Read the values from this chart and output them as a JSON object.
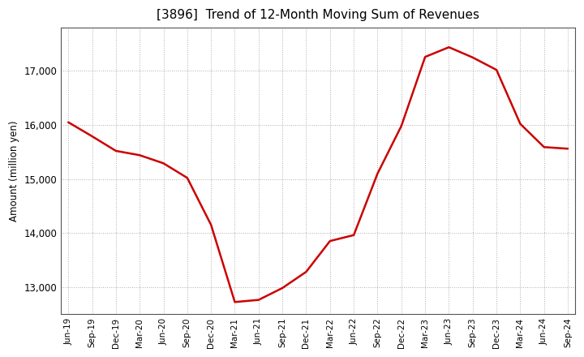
{
  "title": "[3896]  Trend of 12-Month Moving Sum of Revenues",
  "ylabel": "Amount (million yen)",
  "line_color": "#cc0000",
  "line_width": 1.8,
  "background_color": "#ffffff",
  "grid_color": "#999999",
  "ylim": [
    12500,
    17800
  ],
  "yticks": [
    13000,
    14000,
    15000,
    16000,
    17000
  ],
  "x_labels": [
    "Jun-19",
    "Sep-19",
    "Dec-19",
    "Mar-20",
    "Jun-20",
    "Sep-20",
    "Dec-20",
    "Mar-21",
    "Jun-21",
    "Sep-21",
    "Dec-21",
    "Mar-22",
    "Jun-22",
    "Sep-22",
    "Dec-22",
    "Mar-23",
    "Jun-23",
    "Sep-23",
    "Dec-23",
    "Mar-24",
    "Jun-24",
    "Sep-24"
  ],
  "values": [
    16050,
    15790,
    15520,
    15440,
    15290,
    15020,
    14150,
    12720,
    12760,
    12980,
    13280,
    13850,
    13960,
    15100,
    15980,
    17260,
    17440,
    17250,
    17020,
    16020,
    15590,
    15560
  ]
}
